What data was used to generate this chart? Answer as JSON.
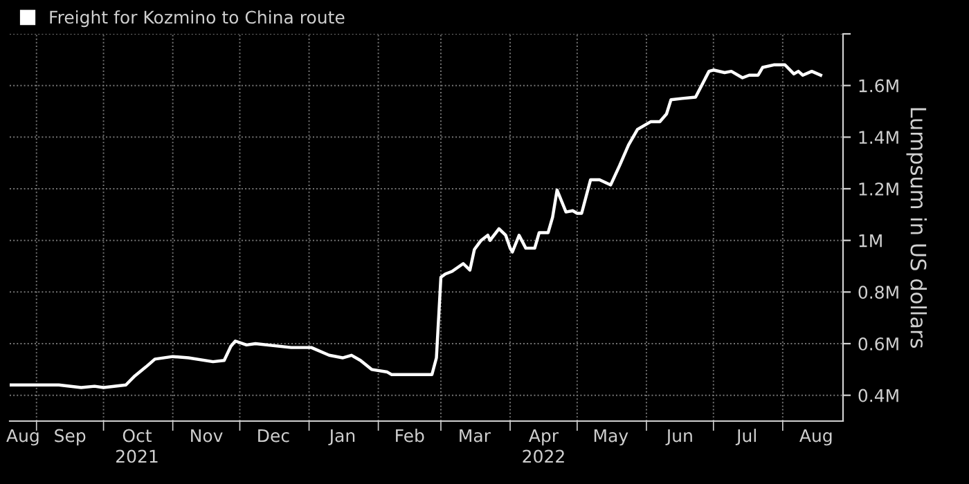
{
  "chart_data": {
    "type": "line",
    "ylabel": "Lumpsum in US dollars",
    "legend": "top left",
    "grid": true,
    "ylim": [
      300000,
      1800000
    ],
    "yticks": [
      {
        "value": 400000,
        "label": "0.4M"
      },
      {
        "value": 600000,
        "label": "0.6M"
      },
      {
        "value": 800000,
        "label": "0.8M"
      },
      {
        "value": 1000000,
        "label": "1M"
      },
      {
        "value": 1200000,
        "label": "1.2M"
      },
      {
        "value": 1400000,
        "label": "1.4M"
      },
      {
        "value": 1600000,
        "label": "1.6M"
      },
      {
        "value": 1800000,
        "label": null
      }
    ],
    "xlim": [
      "2021-08-20",
      "2022-08-28"
    ],
    "xticks": [
      {
        "value": "2021-08-26",
        "label": "Aug"
      },
      {
        "value": "2021-09-01",
        "label": null
      },
      {
        "value": "2021-09-16",
        "label": "Sep"
      },
      {
        "value": "2021-10-01",
        "label": null
      },
      {
        "value": "2021-10-16",
        "label": "Oct\n2021"
      },
      {
        "value": "2021-11-01",
        "label": null
      },
      {
        "value": "2021-11-16",
        "label": "Nov"
      },
      {
        "value": "2021-12-01",
        "label": null
      },
      {
        "value": "2021-12-16",
        "label": "Dec"
      },
      {
        "value": "2022-01-01",
        "label": null
      },
      {
        "value": "2022-01-16",
        "label": "Jan"
      },
      {
        "value": "2022-02-01",
        "label": null
      },
      {
        "value": "2022-02-15",
        "label": "Feb"
      },
      {
        "value": "2022-03-01",
        "label": null
      },
      {
        "value": "2022-03-16",
        "label": "Mar"
      },
      {
        "value": "2022-04-01",
        "label": null
      },
      {
        "value": "2022-04-16",
        "label": "Apr\n2022"
      },
      {
        "value": "2022-05-01",
        "label": null
      },
      {
        "value": "2022-05-16",
        "label": "May"
      },
      {
        "value": "2022-06-01",
        "label": null
      },
      {
        "value": "2022-06-16",
        "label": "Jun"
      },
      {
        "value": "2022-07-01",
        "label": null
      },
      {
        "value": "2022-07-16",
        "label": "Jul"
      },
      {
        "value": "2022-08-01",
        "label": null
      },
      {
        "value": "2022-08-16",
        "label": "Aug"
      }
    ],
    "series": [
      {
        "name": "Freight for Kozmino to China route",
        "color": "#ffffff",
        "x": [
          "2021-08-20",
          "2021-09-01",
          "2021-09-11",
          "2021-09-21",
          "2021-09-27",
          "2021-10-01",
          "2021-10-11",
          "2021-10-15",
          "2021-10-20",
          "2021-10-24",
          "2021-11-01",
          "2021-11-08",
          "2021-11-19",
          "2021-11-24",
          "2021-11-27",
          "2021-11-29",
          "2021-12-04",
          "2021-12-08",
          "2021-12-24",
          "2022-01-02",
          "2022-01-10",
          "2022-01-16",
          "2022-01-20",
          "2022-01-24",
          "2022-01-29",
          "2022-02-05",
          "2022-02-07",
          "2022-02-16",
          "2022-02-25",
          "2022-02-27",
          "2022-03-01",
          "2022-03-03",
          "2022-03-06",
          "2022-03-11",
          "2022-03-14",
          "2022-03-16",
          "2022-03-19",
          "2022-03-22",
          "2022-03-23",
          "2022-03-27",
          "2022-03-30",
          "2022-04-01",
          "2022-04-02",
          "2022-04-05",
          "2022-04-08",
          "2022-04-12",
          "2022-04-14",
          "2022-04-18",
          "2022-04-20",
          "2022-04-22",
          "2022-04-26",
          "2022-04-29",
          "2022-05-01",
          "2022-05-03",
          "2022-05-07",
          "2022-05-11",
          "2022-05-16",
          "2022-05-20",
          "2022-05-24",
          "2022-05-28",
          "2022-06-03",
          "2022-06-07",
          "2022-06-10",
          "2022-06-12",
          "2022-06-17",
          "2022-06-23",
          "2022-06-29",
          "2022-07-01",
          "2022-07-06",
          "2022-07-09",
          "2022-07-14",
          "2022-07-17",
          "2022-07-21",
          "2022-07-23",
          "2022-07-28",
          "2022-08-02",
          "2022-08-06",
          "2022-08-08",
          "2022-08-10",
          "2022-08-14",
          "2022-08-18"
        ],
        "values": [
          440000,
          440000,
          440000,
          430000,
          435000,
          430000,
          440000,
          475000,
          510000,
          540000,
          550000,
          545000,
          530000,
          535000,
          590000,
          610000,
          595000,
          600000,
          585000,
          585000,
          555000,
          545000,
          555000,
          535000,
          500000,
          490000,
          480000,
          480000,
          480000,
          545000,
          857000,
          870000,
          880000,
          910000,
          885000,
          965000,
          1000000,
          1020000,
          1000000,
          1045000,
          1020000,
          970000,
          955000,
          1020000,
          970000,
          970000,
          1030000,
          1030000,
          1090000,
          1195000,
          1110000,
          1115000,
          1105000,
          1105000,
          1235000,
          1235000,
          1215000,
          1290000,
          1370000,
          1430000,
          1460000,
          1460000,
          1490000,
          1545000,
          1550000,
          1555000,
          1655000,
          1660000,
          1650000,
          1655000,
          1630000,
          1640000,
          1640000,
          1670000,
          1680000,
          1680000,
          1645000,
          1655000,
          1640000,
          1655000,
          1640000
        ]
      }
    ]
  }
}
